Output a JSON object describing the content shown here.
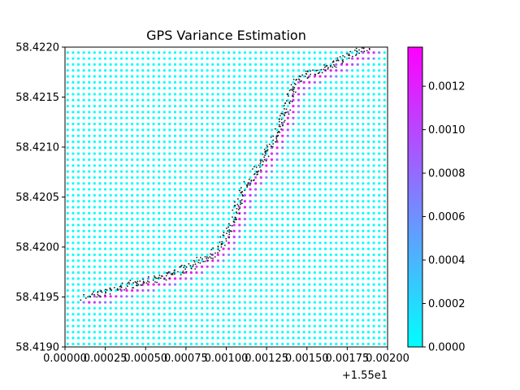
{
  "chart_data": {
    "type": "scatter",
    "title": "GPS Variance Estimation",
    "xlabel": "",
    "ylabel": "",
    "x_offset_label": "+1.55e1",
    "xlim": [
      0.0,
      0.002
    ],
    "ylim": [
      58.419,
      58.422
    ],
    "x_ticks": [
      0.0,
      0.00025,
      0.0005,
      0.00075,
      0.001,
      0.00125,
      0.0015,
      0.00175,
      0.002
    ],
    "x_tick_labels": [
      "0.00000",
      "0.00025",
      "0.00050",
      "0.00075",
      "0.00100",
      "0.00125",
      "0.00150",
      "0.00175",
      "0.00200"
    ],
    "y_ticks": [
      58.419,
      58.4195,
      58.42,
      58.4205,
      58.421,
      58.4215,
      58.422
    ],
    "y_tick_labels": [
      "58.4190",
      "58.4195",
      "58.4200",
      "58.4205",
      "58.4210",
      "58.4215",
      "58.4220"
    ],
    "grid": false,
    "colorbar": {
      "colormap": "cool",
      "range": [
        0.0,
        0.00138
      ],
      "ticks": [
        0.0,
        0.0002,
        0.0004,
        0.0006,
        0.0008,
        0.001,
        0.0012
      ],
      "tick_labels": [
        "0.0000",
        "0.0002",
        "0.0004",
        "0.0006",
        "0.0008",
        "0.0010",
        "0.0012"
      ],
      "color_low": "#00ffff",
      "color_high": "#ff00ff"
    },
    "background_grid": {
      "x_step": 3.33e-05,
      "y_step": 5.95e-05,
      "base_value": 0.0,
      "marker_size": 1.6
    },
    "path": {
      "description_points": [
        [
          0.00012,
          58.4195
        ],
        [
          0.00025,
          58.41955
        ],
        [
          0.0004,
          58.41962
        ],
        [
          0.00055,
          58.41968
        ],
        [
          0.0007,
          58.41975
        ],
        [
          0.0008,
          58.41982
        ],
        [
          0.0009,
          58.41992
        ],
        [
          0.00098,
          58.42005
        ],
        [
          0.00103,
          58.42022
        ],
        [
          0.00108,
          58.42045
        ],
        [
          0.00112,
          58.4206
        ],
        [
          0.00118,
          58.42075
        ],
        [
          0.00124,
          58.4209
        ],
        [
          0.0013,
          58.4211
        ],
        [
          0.00134,
          58.42125
        ],
        [
          0.00138,
          58.4214
        ],
        [
          0.0014,
          58.42155
        ],
        [
          0.00143,
          58.42165
        ],
        [
          0.0015,
          58.42172
        ],
        [
          0.00165,
          58.42182
        ],
        [
          0.00178,
          58.42192
        ],
        [
          0.00188,
          58.422
        ]
      ],
      "trace_count": 420,
      "trace_color": "#1a1a1a",
      "high_variance_offset": [
        3e-05,
        -4e-05
      ],
      "high_variance_value": 0.00135
    }
  }
}
